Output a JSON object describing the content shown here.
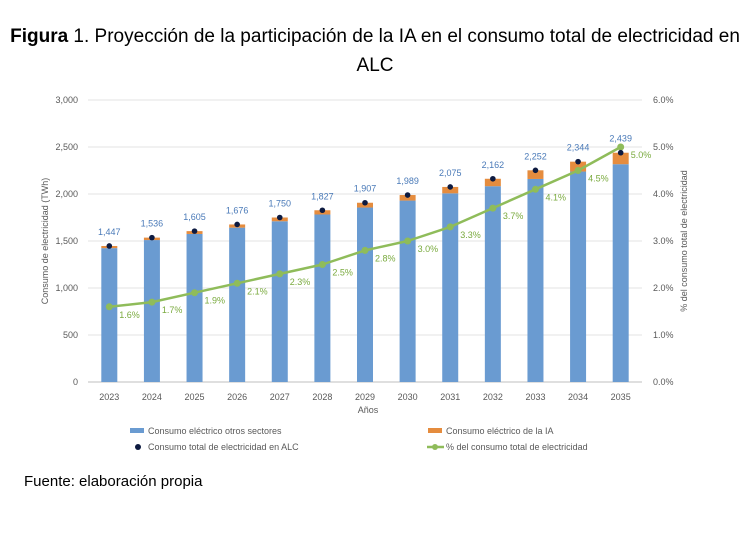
{
  "figure": {
    "prefix": "Figura",
    "title_rest": " 1. Proyección de la participación de la IA en el consumo total de electricidad en ALC"
  },
  "source": "Fuente: elaboración propia",
  "chart_data": {
    "type": "bar",
    "categories": [
      "2023",
      "2024",
      "2025",
      "2026",
      "2027",
      "2028",
      "2029",
      "2030",
      "2031",
      "2032",
      "2033",
      "2034",
      "2035"
    ],
    "series": [
      {
        "name": "Consumo eléctrico otros sectores",
        "kind": "bar-stack",
        "values": [
          1424,
          1510,
          1575,
          1642,
          1710,
          1782,
          1856,
          1930,
          2007,
          2083,
          2160,
          2239,
          2317
        ],
        "color": "#6a9bd1"
      },
      {
        "name": "Consumo eléctrico de la IA",
        "kind": "bar-stack",
        "values": [
          23,
          26,
          30,
          34,
          40,
          45,
          51,
          59,
          68,
          79,
          92,
          105,
          122
        ],
        "color": "#e58c3e"
      },
      {
        "name": "Consumo total de electricidad en ALC",
        "kind": "marker",
        "values": [
          1447,
          1536,
          1605,
          1676,
          1750,
          1827,
          1907,
          1989,
          2075,
          2162,
          2252,
          2344,
          2439
        ],
        "labels": [
          "1,447",
          "1,536",
          "1,605",
          "1,676",
          "1,750",
          "1,827",
          "1,907",
          "1,989",
          "2,075",
          "2,162",
          "2,252",
          "2,344",
          "2,439"
        ],
        "color": "#0d1a40"
      },
      {
        "name": "% del consumo total de electricidad",
        "kind": "line",
        "axis": "right",
        "values": [
          1.6,
          1.7,
          1.9,
          2.1,
          2.3,
          2.5,
          2.8,
          3.0,
          3.3,
          3.7,
          4.1,
          4.5,
          5.0
        ],
        "labels": [
          "1.6%",
          "1.7%",
          "1.9%",
          "2.1%",
          "2.3%",
          "2.5%",
          "2.8%",
          "3.0%",
          "3.3%",
          "3.7%",
          "4.1%",
          "4.5%",
          "5.0%"
        ],
        "color": "#8fbc5a"
      }
    ],
    "xlabel": "Años",
    "ylabel": "Consumo de electricidad (TWh)",
    "y2label": "% del consumo total de electricidad",
    "ylim": [
      0,
      3000
    ],
    "y2lim": [
      0,
      6
    ],
    "yticks": [
      "0",
      "500",
      "1,000",
      "1,500",
      "2,000",
      "2,500",
      "3,000"
    ],
    "y2ticks": [
      "0.0%",
      "1.0%",
      "2.0%",
      "3.0%",
      "4.0%",
      "5.0%",
      "6.0%"
    ],
    "grid": true,
    "legend_position": "bottom"
  }
}
